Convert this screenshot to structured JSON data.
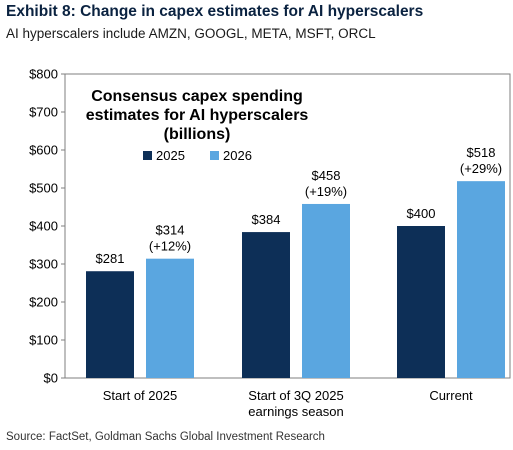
{
  "header": {
    "title": "Exhibit 8: Change in capex estimates for AI hyperscalers",
    "subtitle": "AI hyperscalers include AMZN, GOOGL, META, MSFT, ORCL"
  },
  "footer": {
    "source": "Source: FactSet, Goldman Sachs Global Investment Research"
  },
  "colors": {
    "series_2025": "#0d2f57",
    "series_2026": "#5aa6e0",
    "axis": "#7f7f7f",
    "title": "#0a2240"
  },
  "chart_data": {
    "type": "bar",
    "title": [
      "Consensus capex spending",
      "estimates for AI hyperscalers",
      "(billions)"
    ],
    "categories": [
      [
        "Start of 2025"
      ],
      [
        "Start of 3Q 2025",
        "earnings season"
      ],
      [
        "Current"
      ]
    ],
    "series": [
      {
        "name": "2025",
        "values": [
          281,
          384,
          400
        ],
        "labels": [
          [
            "$281"
          ],
          [
            "$384"
          ],
          [
            "$400"
          ]
        ]
      },
      {
        "name": "2026",
        "values": [
          314,
          458,
          518
        ],
        "labels": [
          [
            "$314",
            "(+12%)"
          ],
          [
            "$458",
            "(+19%)"
          ],
          [
            "$518",
            "(+29%)"
          ]
        ]
      }
    ],
    "ylim": [
      0,
      800
    ],
    "yticks": [
      0,
      100,
      200,
      300,
      400,
      500,
      600,
      700,
      800
    ],
    "ytick_labels": [
      "$0",
      "$100",
      "$200",
      "$300",
      "$400",
      "$500",
      "$600",
      "$700",
      "$800"
    ],
    "legend_position": "top-left",
    "grid": false
  }
}
